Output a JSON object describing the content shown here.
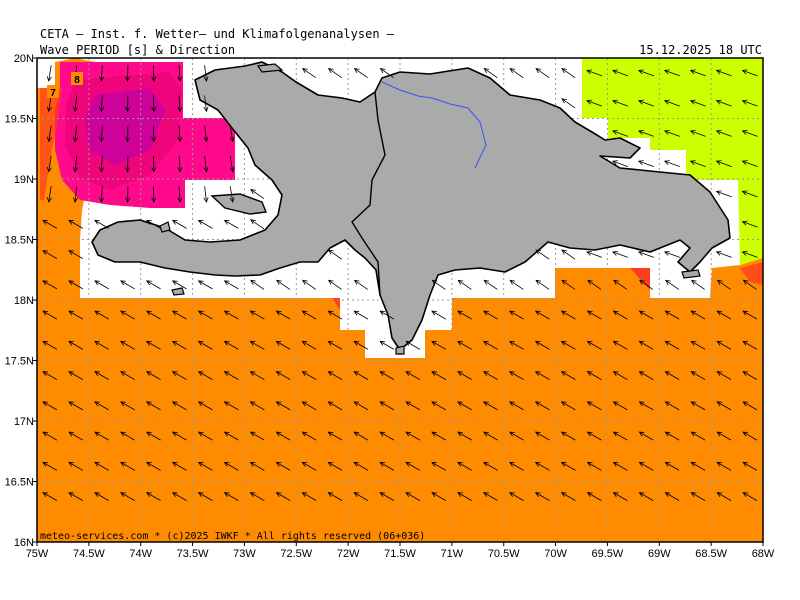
{
  "header": {
    "institute": "CETA – Inst. f. Wetter– und Klimafolgenanalysen –",
    "parameter": "Wave PERIOD [s] & Direction",
    "datetime": "15.12.2025 18 UTC"
  },
  "credit": "meteo-services.com * (c)2025 IWKF * All rights reserved (06+036)",
  "x_ticks": [
    "75W",
    "74.5W",
    "74W",
    "73.5W",
    "73W",
    "72.5W",
    "72W",
    "71.5W",
    "71W",
    "70.5W",
    "70W",
    "69.5W",
    "69W",
    "68.5W",
    "68W"
  ],
  "y_ticks": [
    "20N",
    "19.5N",
    "19N",
    "18.5N",
    "18N",
    "17.5N",
    "17N",
    "16.5N",
    "16N"
  ],
  "contour_labels": [
    "8",
    "7"
  ],
  "colors": {
    "ocean_orange": "#ff8c00",
    "magenta": "#ff0a8c",
    "lime": "#ccff00",
    "land": "#aaaaaa",
    "river": "#3c50ff",
    "grid": "#999999"
  },
  "map_extent": {
    "lon": [
      -75,
      -68
    ],
    "lat": [
      16,
      20
    ]
  },
  "arrow_direction": "waves propagating toward the northwest in the south, southward/southwest in the north"
}
